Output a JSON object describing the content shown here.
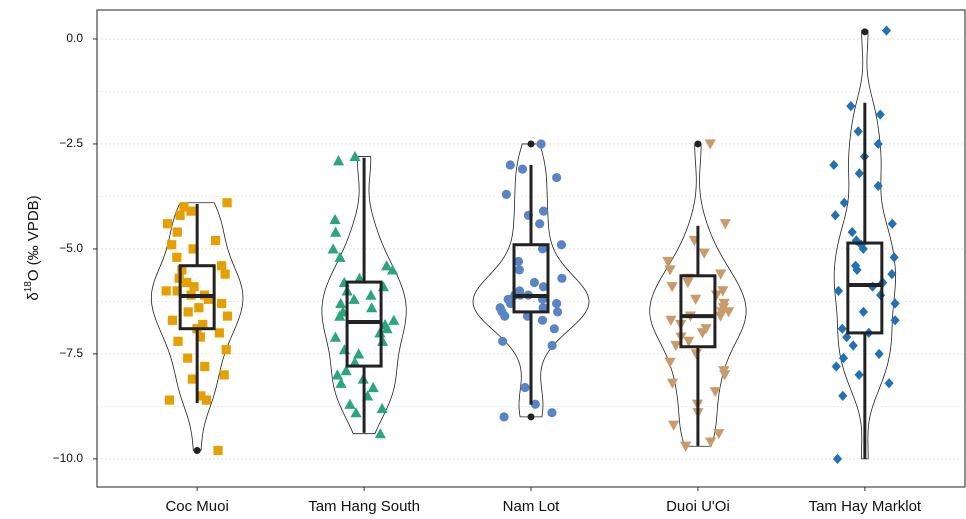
{
  "chart_data": {
    "type": "violin",
    "ylabel_parts": [
      "δ",
      "18",
      "O (‰ VPDB)"
    ],
    "ylim": [
      -10.67,
      0.69
    ],
    "yticks": [
      {
        "value": 0,
        "label": "0.0"
      },
      {
        "value": -2.5,
        "label": "−2.5"
      },
      {
        "value": -5,
        "label": "−5.0"
      },
      {
        "value": -7.5,
        "label": "−7.5"
      },
      {
        "value": -10,
        "label": "−10.0"
      }
    ],
    "grid": true,
    "minor_grid": true,
    "categories": [
      "Coc Muoi",
      "Tam Hang South",
      "Nam Lot",
      "Duoi U'Oi",
      "Tam Hay Marklot"
    ],
    "series": [
      {
        "name": "Coc Muoi",
        "color": "#E69F00",
        "shape": "square",
        "values": [
          -3.9,
          -4.0,
          -4.1,
          -4.2,
          -4.4,
          -4.6,
          -4.8,
          -4.9,
          -5.0,
          -5.2,
          -5.4,
          -5.5,
          -5.6,
          -5.7,
          -5.8,
          -5.9,
          -6.0,
          -6.0,
          -6.1,
          -6.1,
          -6.2,
          -6.3,
          -6.4,
          -6.5,
          -6.6,
          -6.7,
          -6.8,
          -6.9,
          -7.0,
          -7.1,
          -7.2,
          -7.4,
          -7.6,
          -7.8,
          -8.0,
          -8.1,
          -8.5,
          -8.6,
          -8.6,
          -9.8
        ],
        "box": {
          "whislo": -8.67,
          "q1": -6.9,
          "med": -6.12,
          "q3": -5.4,
          "whishi": -3.93
        },
        "outliers": [
          -9.8
        ]
      },
      {
        "name": "Tam Hang South",
        "color": "#2BA57A",
        "shape": "triangle",
        "values": [
          -2.8,
          -2.9,
          -4.3,
          -4.6,
          -5.0,
          -5.2,
          -5.4,
          -5.5,
          -5.7,
          -5.8,
          -5.9,
          -6.0,
          -6.1,
          -6.2,
          -6.3,
          -6.4,
          -6.5,
          -6.6,
          -6.7,
          -6.8,
          -6.9,
          -7.0,
          -7.1,
          -7.2,
          -7.4,
          -7.5,
          -7.7,
          -7.9,
          -8.0,
          -8.1,
          -8.2,
          -8.3,
          -8.5,
          -8.7,
          -8.8,
          -8.9,
          -9.4
        ],
        "box": {
          "whislo": -9.38,
          "q1": -7.79,
          "med": -6.74,
          "q3": -5.79,
          "whishi": -2.83
        },
        "outliers": []
      },
      {
        "name": "Nam Lot",
        "color": "#5B84C4",
        "shape": "circle",
        "values": [
          -2.5,
          -3.0,
          -3.1,
          -3.3,
          -3.7,
          -4.1,
          -4.2,
          -4.4,
          -4.9,
          -5.0,
          -5.3,
          -5.5,
          -5.7,
          -5.8,
          -5.9,
          -6.0,
          -6.1,
          -6.1,
          -6.1,
          -6.2,
          -6.2,
          -6.3,
          -6.3,
          -6.4,
          -6.4,
          -6.5,
          -6.5,
          -6.6,
          -6.6,
          -6.7,
          -6.9,
          -7.2,
          -7.3,
          -8.3,
          -8.7,
          -8.9,
          -9.0
        ],
        "box": {
          "whislo": -8.71,
          "q1": -6.5,
          "med": -6.12,
          "q3": -4.9,
          "whishi": -3.0
        },
        "outliers": [
          -2.5,
          -9.0
        ]
      },
      {
        "name": "Duoi U'Oi",
        "color": "#C99B6B",
        "shape": "triangle-down",
        "values": [
          -2.5,
          -4.4,
          -4.8,
          -5.1,
          -5.3,
          -5.5,
          -5.6,
          -5.7,
          -5.8,
          -5.9,
          -6.0,
          -6.1,
          -6.2,
          -6.3,
          -6.4,
          -6.5,
          -6.5,
          -6.6,
          -6.6,
          -6.7,
          -6.8,
          -6.9,
          -7.0,
          -7.1,
          -7.2,
          -7.3,
          -7.5,
          -7.7,
          -7.9,
          -8.0,
          -8.2,
          -8.4,
          -8.7,
          -8.9,
          -9.2,
          -9.4,
          -9.6,
          -9.7
        ],
        "box": {
          "whislo": -9.69,
          "q1": -7.33,
          "med": -6.6,
          "q3": -5.64,
          "whishi": -4.45
        },
        "outliers": [
          -2.5
        ]
      },
      {
        "name": "Tam Hay Marklot",
        "color": "#2271B5",
        "shape": "diamond",
        "values": [
          0.2,
          -1.6,
          -1.8,
          -2.2,
          -2.5,
          -2.8,
          -3.0,
          -3.2,
          -3.5,
          -3.9,
          -4.2,
          -4.4,
          -4.6,
          -4.8,
          -4.9,
          -5.0,
          -5.2,
          -5.4,
          -5.5,
          -5.6,
          -5.8,
          -5.9,
          -6.0,
          -6.1,
          -6.3,
          -6.5,
          -6.7,
          -6.9,
          -7.0,
          -7.1,
          -7.3,
          -7.5,
          -7.6,
          -7.8,
          -8.0,
          -8.2,
          -8.5,
          -10.0
        ],
        "box": {
          "whislo": -10.0,
          "q1": -7.0,
          "med": -5.86,
          "q3": -4.86,
          "whishi": -1.52
        },
        "outliers": [
          0.17
        ]
      }
    ]
  }
}
